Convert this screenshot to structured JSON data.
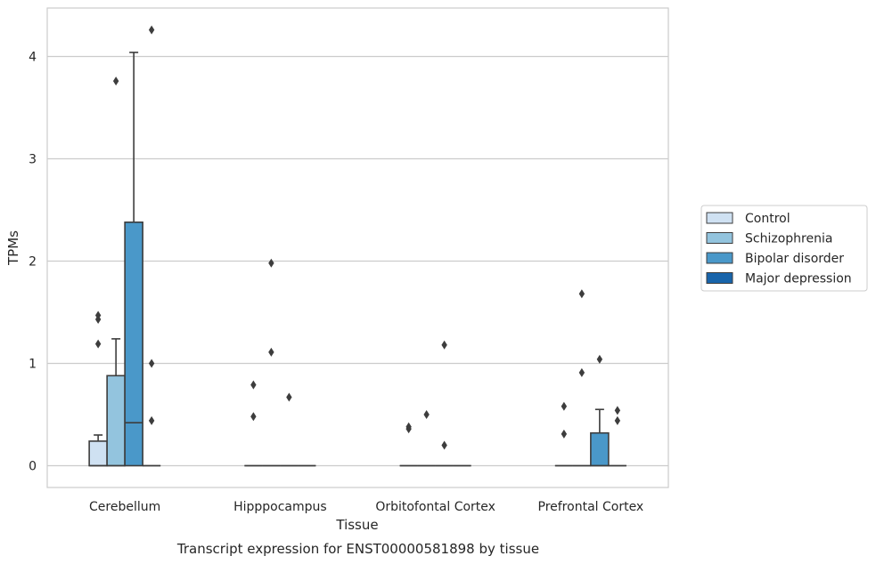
{
  "caption": "Transcript expression for ENST00000581898 by tissue",
  "chart_data": {
    "type": "box",
    "xlabel": "Tissue",
    "ylabel": "TPMs",
    "ylim": [
      -0.2,
      4.48
    ],
    "yticks": [
      0,
      1,
      2,
      3,
      4
    ],
    "grid": true,
    "legend_position": "right",
    "categories": [
      "Cerebellum",
      "Hipppocampus",
      "Orbitofontal Cortex",
      "Prefrontal Cortex"
    ],
    "series": [
      {
        "name": "Control",
        "color": "#cfe1f2",
        "boxes": [
          {
            "q1": 0,
            "median": 0,
            "q3": 0.24,
            "whisker_low": 0,
            "whisker_high": 0.3,
            "outliers": [
              1.19,
              1.43,
              1.47
            ]
          },
          {
            "q1": 0,
            "median": 0,
            "q3": 0,
            "whisker_low": 0,
            "whisker_high": 0,
            "outliers": [
              0.48,
              0.79
            ]
          },
          {
            "q1": 0,
            "median": 0,
            "q3": 0,
            "whisker_low": 0,
            "whisker_high": 0,
            "outliers": [
              0.36,
              0.38
            ]
          },
          {
            "q1": 0,
            "median": 0,
            "q3": 0,
            "whisker_low": 0,
            "whisker_high": 0,
            "outliers": [
              0.31,
              0.58
            ]
          }
        ]
      },
      {
        "name": "Schizophrenia",
        "color": "#93c4de",
        "boxes": [
          {
            "q1": 0,
            "median": 0,
            "q3": 0.88,
            "whisker_low": 0,
            "whisker_high": 1.24,
            "outliers": [
              3.76
            ]
          },
          {
            "q1": 0,
            "median": 0,
            "q3": 0,
            "whisker_low": 0,
            "whisker_high": 0,
            "outliers": [
              1.11,
              1.98
            ]
          },
          {
            "q1": 0,
            "median": 0,
            "q3": 0,
            "whisker_low": 0,
            "whisker_high": 0,
            "outliers": [
              0.5
            ]
          },
          {
            "q1": 0,
            "median": 0,
            "q3": 0,
            "whisker_low": 0,
            "whisker_high": 0,
            "outliers": [
              0.91,
              1.68
            ]
          }
        ]
      },
      {
        "name": "Bipolar disorder",
        "color": "#4a98c9",
        "boxes": [
          {
            "q1": 0,
            "median": 0.42,
            "q3": 2.38,
            "whisker_low": 0,
            "whisker_high": 4.04,
            "outliers": []
          },
          {
            "q1": 0,
            "median": 0,
            "q3": 0,
            "whisker_low": 0,
            "whisker_high": 0,
            "outliers": [
              0.67
            ]
          },
          {
            "q1": 0,
            "median": 0,
            "q3": 0,
            "whisker_low": 0,
            "whisker_high": 0,
            "outliers": [
              0.2,
              1.18
            ]
          },
          {
            "q1": 0,
            "median": 0,
            "q3": 0.32,
            "whisker_low": 0,
            "whisker_high": 0.55,
            "outliers": [
              1.04
            ]
          }
        ]
      },
      {
        "name": "Major depression",
        "color": "#1864aa",
        "boxes": [
          {
            "q1": 0,
            "median": 0,
            "q3": 0,
            "whisker_low": 0,
            "whisker_high": 0,
            "outliers": [
              0.44,
              1.0,
              4.26
            ]
          },
          {
            "q1": 0,
            "median": 0,
            "q3": 0,
            "whisker_low": 0,
            "whisker_high": 0,
            "outliers": []
          },
          {
            "q1": 0,
            "median": 0,
            "q3": 0,
            "whisker_low": 0,
            "whisker_high": 0,
            "outliers": []
          },
          {
            "q1": 0,
            "median": 0,
            "q3": 0,
            "whisker_low": 0,
            "whisker_high": 0,
            "outliers": [
              0.44,
              0.54
            ]
          }
        ]
      }
    ]
  }
}
